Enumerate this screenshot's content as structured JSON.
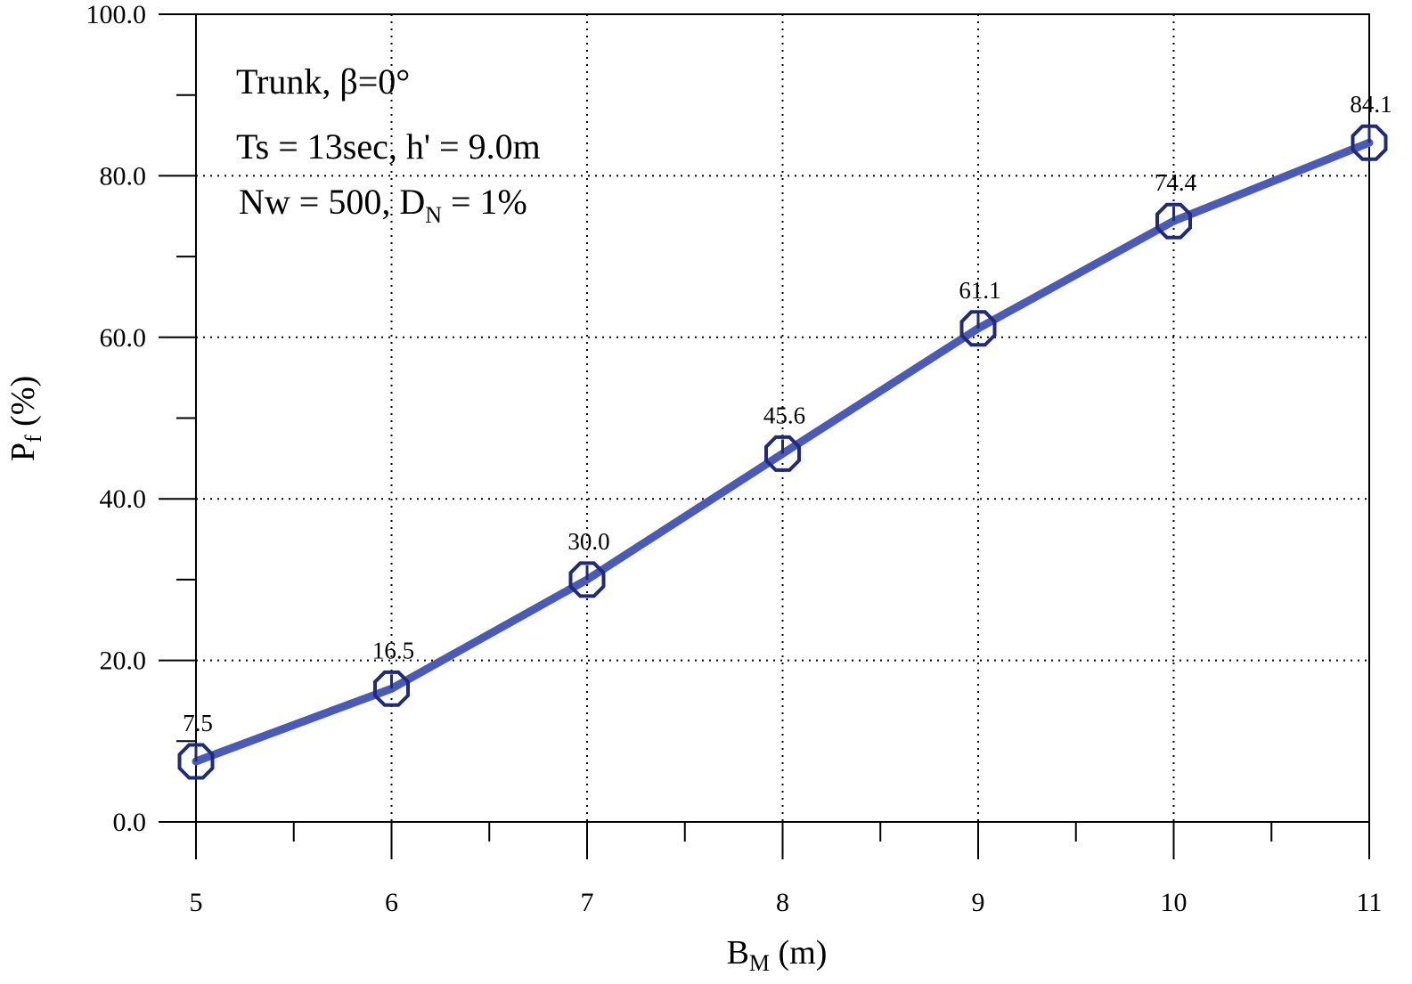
{
  "chart_data": {
    "type": "line",
    "x": [
      5,
      6,
      7,
      8,
      9,
      10,
      11
    ],
    "series": [
      {
        "values": [
          7.5,
          16.5,
          30.0,
          45.6,
          61.1,
          74.4,
          84.1
        ]
      }
    ],
    "data_labels": [
      "7.5",
      "16.5",
      "30.0",
      "45.6",
      "61.1",
      "74.4",
      "84.1"
    ],
    "xlabel_main": "B",
    "xlabel_sub": "M",
    "xlabel_unit": " (m)",
    "ylabel_main": "P",
    "ylabel_sub": "f",
    "ylabel_unit": " (%)",
    "xlim": [
      5,
      11
    ],
    "ylim": [
      0,
      100
    ],
    "x_ticks": [
      5,
      6,
      7,
      8,
      9,
      10,
      11
    ],
    "x_tick_labels": [
      "5",
      "6",
      "7",
      "8",
      "9",
      "10",
      "11"
    ],
    "y_ticks": [
      0,
      20,
      40,
      60,
      80,
      100
    ],
    "y_tick_labels": [
      "0.0",
      "20.0",
      "40.0",
      "60.0",
      "80.0",
      "100.0"
    ],
    "grid": "dotted",
    "marker": "octagon",
    "colors": {
      "line": "#4a5ab8",
      "marker": "#1f2a7a"
    },
    "annotations": {
      "line1": "Trunk, β=0°",
      "line2": "Ts = 13sec, h' = 9.0m",
      "line3_a": "Nw = 500, D",
      "line3_sub": "N",
      "line3_b": " = 1%"
    }
  }
}
